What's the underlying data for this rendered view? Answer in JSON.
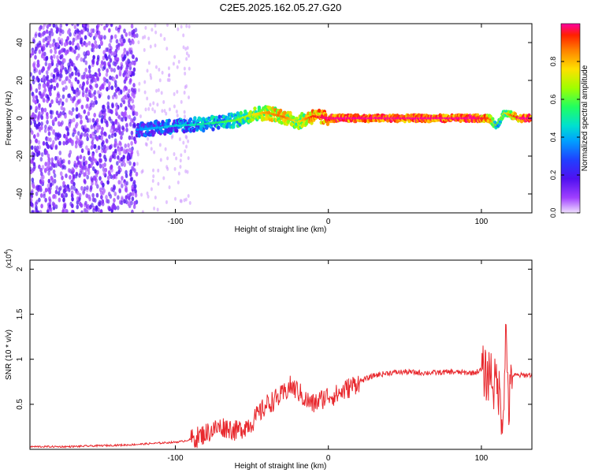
{
  "figure": {
    "title": "C2E5.2025.162.05.27.G20"
  },
  "chart_data": [
    {
      "type": "heatmap",
      "xlabel": "Height of straight line (km)",
      "ylabel": "Frequency (Hz)",
      "xlim": [
        -195,
        133
      ],
      "ylim": [
        -50,
        50
      ],
      "x_ticks": [
        -100,
        0,
        100
      ],
      "y_ticks": [
        -40,
        -20,
        0,
        20,
        40
      ],
      "grid": false,
      "colorbar": {
        "label": "Normalized spectral amplitude",
        "range": [
          0,
          1
        ],
        "ticks": [
          0.0,
          0.2,
          0.4,
          0.6,
          0.8
        ],
        "colormap": [
          "#e6c8ff",
          "#a040ff",
          "#5010f0",
          "#2040ff",
          "#00a0ff",
          "#00e0d0",
          "#20ff60",
          "#a0ff00",
          "#ffe000",
          "#ff8000",
          "#ff2000",
          "#ff00a0"
        ]
      },
      "description_points": {
        "x": [
          -125,
          -110,
          -100,
          -80,
          -60,
          -50,
          -40,
          -30,
          -20,
          -10,
          0,
          20,
          50,
          80,
          95,
          105,
          110,
          115,
          125
        ],
        "centre_frequency_hz": [
          -6,
          -5,
          -4,
          -3,
          -1,
          2,
          3,
          1,
          -2,
          1,
          0,
          0,
          0,
          0,
          0,
          0,
          -4,
          3,
          0
        ],
        "amplitude": [
          0.35,
          0.4,
          0.45,
          0.5,
          0.6,
          0.7,
          0.8,
          0.85,
          0.7,
          0.9,
          1.0,
          1.0,
          1.0,
          1.0,
          1.0,
          0.9,
          0.6,
          0.7,
          1.0
        ]
      }
    },
    {
      "type": "line",
      "xlabel": "Height of straight line (km)",
      "ylabel": "SNR (10 * v/v)",
      "y_multiplier": "(x10^4)",
      "xlim": [
        -195,
        133
      ],
      "ylim": [
        0,
        2.1
      ],
      "x_ticks": [
        -100,
        0,
        100
      ],
      "y_ticks": [
        0.5,
        1.0,
        1.5,
        2.0
      ],
      "grid": false,
      "series": [
        {
          "color": "#e8282d",
          "x": [
            -195,
            -170,
            -150,
            -130,
            -120,
            -110,
            -100,
            -95,
            -90,
            -85,
            -80,
            -75,
            -70,
            -65,
            -60,
            -55,
            -50,
            -45,
            -40,
            -35,
            -30,
            -25,
            -20,
            -15,
            -10,
            -5,
            0,
            5,
            10,
            20,
            30,
            40,
            50,
            60,
            70,
            80,
            90,
            95,
            100,
            104,
            106,
            108,
            110,
            112,
            114,
            115,
            116,
            118,
            120,
            125,
            133
          ],
          "y": [
            0.03,
            0.03,
            0.04,
            0.05,
            0.06,
            0.07,
            0.08,
            0.09,
            0.11,
            0.14,
            0.18,
            0.22,
            0.25,
            0.24,
            0.2,
            0.25,
            0.3,
            0.4,
            0.5,
            0.55,
            0.6,
            0.7,
            0.65,
            0.55,
            0.5,
            0.55,
            0.6,
            0.6,
            0.65,
            0.75,
            0.82,
            0.85,
            0.86,
            0.85,
            0.85,
            0.86,
            0.85,
            0.85,
            0.88,
            0.8,
            0.9,
            0.7,
            0.75,
            0.6,
            0.3,
            0.85,
            1.3,
            0.45,
            0.82,
            0.82,
            0.83
          ]
        }
      ]
    }
  ]
}
